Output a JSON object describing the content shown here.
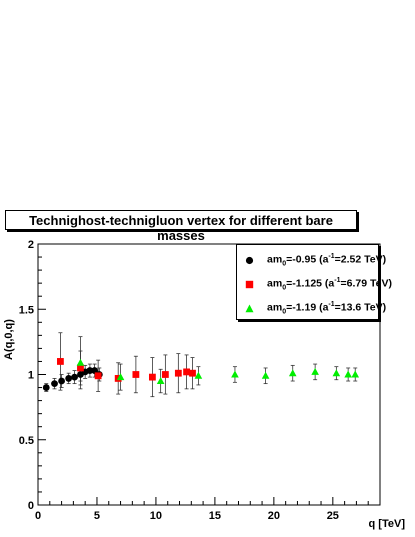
{
  "chart_data": {
    "type": "scatter",
    "title": "Technighost-technigluon vertex for different bare masses",
    "xlabel": "q [TeV]",
    "ylabel": "A(q,0,q)",
    "xlim": [
      0,
      29
    ],
    "ylim": [
      0,
      2
    ],
    "x_ticks": [
      "0",
      "5",
      "10",
      "15",
      "20",
      "25"
    ],
    "y_ticks": [
      "0",
      "0.5",
      "1",
      "1.5",
      "2"
    ],
    "grid": false,
    "legend_position": "top-right",
    "series": [
      {
        "name": "am0=-0.95 (a^-1=2.52 TeV)",
        "label_parts": [
          "am",
          "0",
          "=-0.95 (a",
          "-1",
          "=2.52 TeV)"
        ],
        "marker": "circle",
        "color": "#000000",
        "points": [
          {
            "x": 0.7,
            "y": 0.9,
            "err": 0.03
          },
          {
            "x": 1.4,
            "y": 0.93,
            "err": 0.04
          },
          {
            "x": 2.0,
            "y": 0.95,
            "err": 0.05
          },
          {
            "x": 2.6,
            "y": 0.97,
            "err": 0.04
          },
          {
            "x": 3.1,
            "y": 0.98,
            "err": 0.05
          },
          {
            "x": 3.6,
            "y": 1.0,
            "err": 0.05
          },
          {
            "x": 4.0,
            "y": 1.02,
            "err": 0.05
          },
          {
            "x": 4.4,
            "y": 1.03,
            "err": 0.05
          },
          {
            "x": 4.8,
            "y": 1.03,
            "err": 0.05
          },
          {
            "x": 5.2,
            "y": 1.0,
            "err": 0.05
          }
        ]
      },
      {
        "name": "am0=-1.125 (a^-1=6.79 TeV)",
        "label_parts": [
          "am",
          "0",
          "=-1.125 (a",
          "-1",
          "=6.79 TeV)"
        ],
        "marker": "square",
        "color": "#ff0000",
        "points": [
          {
            "x": 1.9,
            "y": 1.1,
            "err": 0.22
          },
          {
            "x": 3.6,
            "y": 1.05,
            "err": 0.13
          },
          {
            "x": 5.1,
            "y": 0.99,
            "err": 0.12
          },
          {
            "x": 6.8,
            "y": 0.97,
            "err": 0.12
          },
          {
            "x": 8.3,
            "y": 1.0,
            "err": 0.14
          },
          {
            "x": 9.7,
            "y": 0.98,
            "err": 0.15
          },
          {
            "x": 10.8,
            "y": 1.0,
            "err": 0.15
          },
          {
            "x": 11.9,
            "y": 1.01,
            "err": 0.15
          },
          {
            "x": 12.6,
            "y": 1.02,
            "err": 0.13
          },
          {
            "x": 13.1,
            "y": 1.01,
            "err": 0.12
          }
        ]
      },
      {
        "name": "am0=-1.19 (a^-1=13.6 TeV)",
        "label_parts": [
          "am",
          "0",
          "=-1.19 (a",
          "-1",
          "=13.6 TeV)"
        ],
        "marker": "triangle",
        "color": "#00ee00",
        "points": [
          {
            "x": 3.6,
            "y": 1.09,
            "err": 0.2
          },
          {
            "x": 7.0,
            "y": 0.98,
            "err": 0.1
          },
          {
            "x": 10.4,
            "y": 0.95,
            "err": 0.09
          },
          {
            "x": 13.6,
            "y": 0.99,
            "err": 0.07
          },
          {
            "x": 16.7,
            "y": 1.0,
            "err": 0.06
          },
          {
            "x": 19.3,
            "y": 0.99,
            "err": 0.06
          },
          {
            "x": 21.6,
            "y": 1.01,
            "err": 0.06
          },
          {
            "x": 23.5,
            "y": 1.02,
            "err": 0.06
          },
          {
            "x": 25.3,
            "y": 1.01,
            "err": 0.05
          },
          {
            "x": 26.3,
            "y": 1.0,
            "err": 0.05
          },
          {
            "x": 26.9,
            "y": 1.0,
            "err": 0.05
          }
        ]
      }
    ]
  }
}
